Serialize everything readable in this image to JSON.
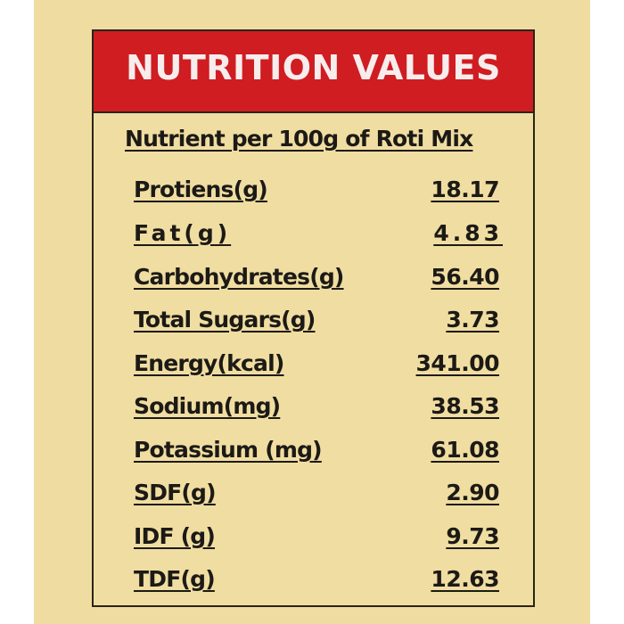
{
  "header": {
    "title": "NUTRITION VALUES"
  },
  "subtitle": "Nutrient per 100g of Roti Mix",
  "rows": [
    {
      "name": "Protiens(g)",
      "value": "18.17"
    },
    {
      "name": "Fat(g)",
      "value": "4.83"
    },
    {
      "name": "Carbohydrates(g)",
      "value": "56.40"
    },
    {
      "name": "Total Sugars(g)",
      "value": "3.73"
    },
    {
      "name": "Energy(kcal)",
      "value": "341.00"
    },
    {
      "name": "Sodium(mg)",
      "value": "38.53"
    },
    {
      "name": "Potassium (mg)",
      "value": "61.08"
    },
    {
      "name": "SDF(g)",
      "value": "2.90"
    },
    {
      "name": "IDF (g)",
      "value": "9.73"
    },
    {
      "name": "TDF(g)",
      "value": "12.63"
    }
  ],
  "colors": {
    "header_bg": "#cf1d22",
    "panel_bg": "#f0dda1",
    "text": "#1c1a16"
  }
}
